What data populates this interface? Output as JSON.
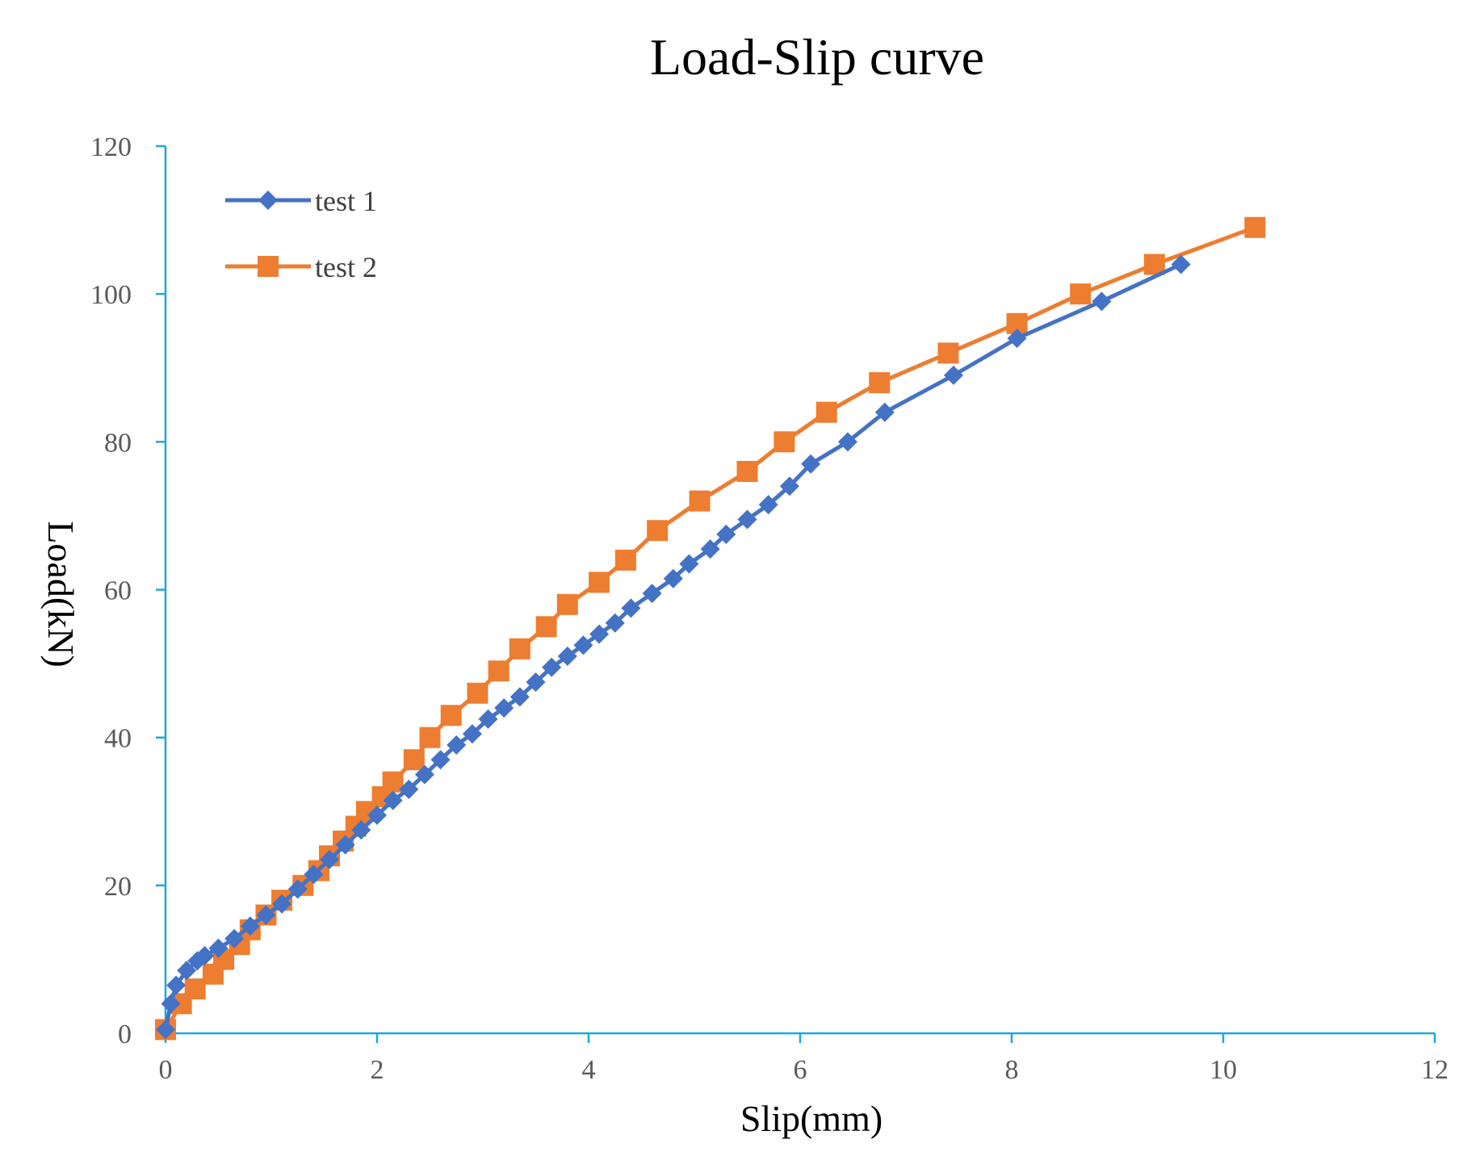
{
  "chart_data": {
    "type": "line",
    "title": "Load-Slip curve",
    "xlabel": "Slip(mm)",
    "ylabel": "Load(kN)",
    "xlim": [
      0,
      12
    ],
    "ylim": [
      0,
      120
    ],
    "xticks": [
      "0",
      "2",
      "4",
      "6",
      "8",
      "10",
      "12"
    ],
    "yticks": [
      "0",
      "20",
      "40",
      "60",
      "80",
      "100",
      "120"
    ],
    "grid": false,
    "legend_position": "top-left",
    "axis_color": "#1ea7dd",
    "series": [
      {
        "name": "test 1",
        "color": "#4472c4",
        "marker": "diamond",
        "points": [
          [
            0.0,
            0.5
          ],
          [
            0.05,
            4
          ],
          [
            0.1,
            6.5
          ],
          [
            0.2,
            8.5
          ],
          [
            0.3,
            9.8
          ],
          [
            0.37,
            10.5
          ],
          [
            0.5,
            11.5
          ],
          [
            0.65,
            12.8
          ],
          [
            0.8,
            14.5
          ],
          [
            0.95,
            16
          ],
          [
            1.1,
            17.5
          ],
          [
            1.25,
            19.5
          ],
          [
            1.4,
            21.5
          ],
          [
            1.55,
            23.5
          ],
          [
            1.7,
            25.5
          ],
          [
            1.85,
            27.5
          ],
          [
            2.0,
            29.5
          ],
          [
            2.15,
            31.5
          ],
          [
            2.3,
            33
          ],
          [
            2.45,
            35
          ],
          [
            2.6,
            37
          ],
          [
            2.75,
            39
          ],
          [
            2.9,
            40.5
          ],
          [
            3.05,
            42.5
          ],
          [
            3.2,
            44
          ],
          [
            3.35,
            45.5
          ],
          [
            3.5,
            47.5
          ],
          [
            3.65,
            49.5
          ],
          [
            3.8,
            51
          ],
          [
            3.95,
            52.5
          ],
          [
            4.1,
            54
          ],
          [
            4.25,
            55.5
          ],
          [
            4.4,
            57.5
          ],
          [
            4.6,
            59.5
          ],
          [
            4.8,
            61.5
          ],
          [
            4.95,
            63.5
          ],
          [
            5.15,
            65.5
          ],
          [
            5.3,
            67.5
          ],
          [
            5.5,
            69.5
          ],
          [
            5.7,
            71.5
          ],
          [
            5.9,
            74
          ],
          [
            6.1,
            77
          ],
          [
            6.45,
            80
          ],
          [
            6.8,
            84
          ],
          [
            7.45,
            89
          ],
          [
            8.05,
            94
          ],
          [
            8.85,
            99
          ],
          [
            9.6,
            104
          ]
        ]
      },
      {
        "name": "test 2",
        "color": "#ed7d31",
        "marker": "square",
        "points": [
          [
            0.0,
            0.5
          ],
          [
            0.15,
            4
          ],
          [
            0.28,
            6
          ],
          [
            0.45,
            8
          ],
          [
            0.55,
            10
          ],
          [
            0.7,
            12
          ],
          [
            0.8,
            14
          ],
          [
            0.95,
            16
          ],
          [
            1.1,
            18
          ],
          [
            1.3,
            20
          ],
          [
            1.45,
            22
          ],
          [
            1.55,
            24
          ],
          [
            1.68,
            26
          ],
          [
            1.8,
            28
          ],
          [
            1.9,
            30
          ],
          [
            2.05,
            32
          ],
          [
            2.15,
            34
          ],
          [
            2.35,
            37
          ],
          [
            2.5,
            40
          ],
          [
            2.7,
            43
          ],
          [
            2.95,
            46
          ],
          [
            3.15,
            49
          ],
          [
            3.35,
            52
          ],
          [
            3.6,
            55
          ],
          [
            3.8,
            58
          ],
          [
            4.1,
            61
          ],
          [
            4.35,
            64
          ],
          [
            4.65,
            68
          ],
          [
            5.05,
            72
          ],
          [
            5.5,
            76
          ],
          [
            5.85,
            80
          ],
          [
            6.25,
            84
          ],
          [
            6.75,
            88
          ],
          [
            7.4,
            92
          ],
          [
            8.05,
            96
          ],
          [
            8.65,
            100
          ],
          [
            9.35,
            104
          ],
          [
            10.3,
            109
          ]
        ]
      }
    ]
  }
}
